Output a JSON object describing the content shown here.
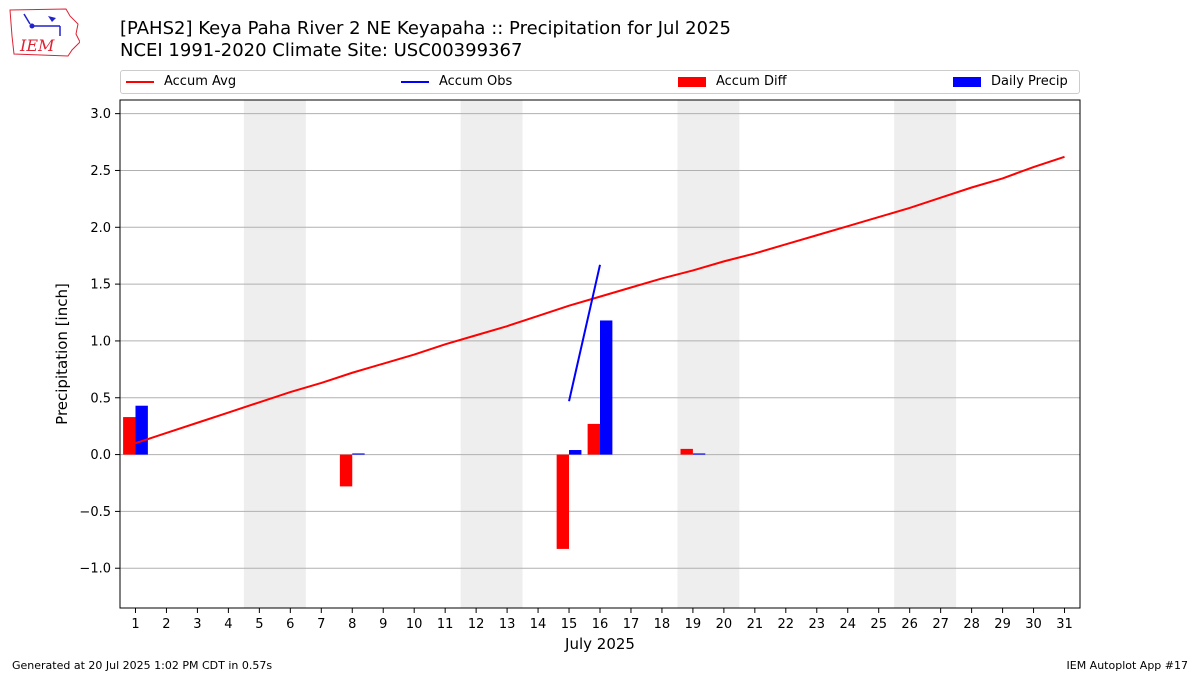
{
  "title_line1": "[PAHS2] Keya Paha River 2 NE Keyapaha :: Precipitation for Jul 2025",
  "title_line2": "NCEI 1991-2020 Climate Site: USC00399367",
  "footer_left": "Generated at 20 Jul 2025 1:02 PM CDT in 0.57s",
  "footer_right": "IEM Autoplot App #17",
  "logo_text": "IEM",
  "colors": {
    "avg": "#ff0000",
    "obs": "#0000ff",
    "diff": "#ff0000",
    "daily": "#0000ff",
    "weekend": "#eeeeee",
    "grid": "#b0b0b0"
  },
  "legend": [
    {
      "label": "Accum Avg",
      "kind": "line",
      "color": "#ff0000"
    },
    {
      "label": "Accum Obs",
      "kind": "line",
      "color": "#0000ff"
    },
    {
      "label": "Accum Diff",
      "kind": "box",
      "color": "#ff0000"
    },
    {
      "label": "Daily Precip",
      "kind": "box",
      "color": "#0000ff"
    }
  ],
  "chart_data": {
    "type": "bar",
    "xlabel": "July 2025",
    "ylabel": "Precipitation [inch]",
    "xlim": [
      0.5,
      31.5
    ],
    "ylim": [
      -1.35,
      3.12
    ],
    "yticks": [
      -1.0,
      -0.5,
      0.0,
      0.5,
      1.0,
      1.5,
      2.0,
      2.5,
      3.0
    ],
    "ytick_labels": [
      "−1.0",
      "−0.5",
      "0.0",
      "0.5",
      "1.0",
      "1.5",
      "2.0",
      "2.5",
      "3.0"
    ],
    "days": [
      1,
      2,
      3,
      4,
      5,
      6,
      7,
      8,
      9,
      10,
      11,
      12,
      13,
      14,
      15,
      16,
      17,
      18,
      19,
      20,
      21,
      22,
      23,
      24,
      25,
      26,
      27,
      28,
      29,
      30,
      31
    ],
    "weekend_bands": [
      [
        4.5,
        6.5
      ],
      [
        11.5,
        13.5
      ],
      [
        18.5,
        20.5
      ],
      [
        25.5,
        27.5
      ]
    ],
    "grid": true,
    "series": [
      {
        "name": "Accum Avg",
        "kind": "line",
        "x": [
          1,
          2,
          3,
          4,
          5,
          6,
          7,
          8,
          9,
          10,
          11,
          12,
          13,
          14,
          15,
          16,
          17,
          18,
          19,
          20,
          21,
          22,
          23,
          24,
          25,
          26,
          27,
          28,
          29,
          30,
          31
        ],
        "values": [
          0.1,
          0.19,
          0.28,
          0.37,
          0.46,
          0.55,
          0.63,
          0.72,
          0.8,
          0.88,
          0.97,
          1.05,
          1.13,
          1.22,
          1.31,
          1.39,
          1.47,
          1.55,
          1.62,
          1.7,
          1.77,
          1.85,
          1.93,
          2.01,
          2.09,
          2.17,
          2.26,
          2.35,
          2.43,
          2.53,
          2.62
        ]
      },
      {
        "name": "Accum Obs",
        "kind": "line",
        "x": [
          15,
          16
        ],
        "values": [
          0.47,
          1.67
        ]
      },
      {
        "name": "Accum Diff",
        "kind": "bar",
        "x": [
          1,
          8,
          15,
          16,
          19
        ],
        "values": [
          0.33,
          -0.28,
          -0.83,
          0.27,
          0.05
        ]
      },
      {
        "name": "Daily Precip",
        "kind": "bar",
        "x": [
          1,
          8,
          15,
          16,
          19
        ],
        "values": [
          0.43,
          0.01,
          0.04,
          1.18,
          0.01
        ]
      }
    ]
  }
}
